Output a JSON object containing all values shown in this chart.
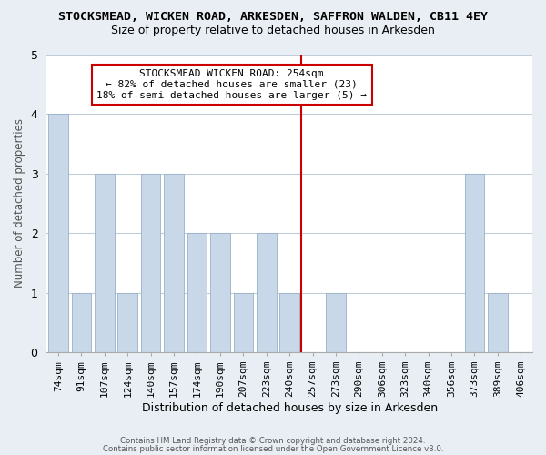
{
  "title": "STOCKSMEAD, WICKEN ROAD, ARKESDEN, SAFFRON WALDEN, CB11 4EY",
  "subtitle": "Size of property relative to detached houses in Arkesden",
  "xlabel": "Distribution of detached houses by size in Arkesden",
  "ylabel": "Number of detached properties",
  "bar_color": "#c8d8e8",
  "bar_edge_color": "#9ab0c8",
  "categories": [
    "74sqm",
    "91sqm",
    "107sqm",
    "124sqm",
    "140sqm",
    "157sqm",
    "174sqm",
    "190sqm",
    "207sqm",
    "223sqm",
    "240sqm",
    "257sqm",
    "273sqm",
    "290sqm",
    "306sqm",
    "323sqm",
    "340sqm",
    "356sqm",
    "373sqm",
    "389sqm",
    "406sqm"
  ],
  "values": [
    4,
    1,
    3,
    1,
    3,
    3,
    2,
    2,
    1,
    2,
    1,
    0,
    1,
    0,
    0,
    0,
    0,
    0,
    3,
    1,
    0
  ],
  "ylim": [
    0,
    5
  ],
  "yticks": [
    0,
    1,
    2,
    3,
    4,
    5
  ],
  "ref_bar_index": 11,
  "annotation_title": "STOCKSMEAD WICKEN ROAD: 254sqm",
  "annotation_line1": "← 82% of detached houses are smaller (23)",
  "annotation_line2": "18% of semi-detached houses are larger (5) →",
  "footer1": "Contains HM Land Registry data © Crown copyright and database right 2024.",
  "footer2": "Contains public sector information licensed under the Open Government Licence v3.0.",
  "background_color": "#e8eef4",
  "plot_bg_color": "#ffffff",
  "grid_color": "#c0ccd8",
  "ref_line_color": "#cc0000",
  "annotation_box_facecolor": "#ffffff",
  "annotation_box_edgecolor": "#cc0000",
  "title_fontsize": 9.5,
  "subtitle_fontsize": 9,
  "ylabel_fontsize": 8.5,
  "xlabel_fontsize": 9,
  "tick_fontsize": 8,
  "annotation_fontsize": 8
}
